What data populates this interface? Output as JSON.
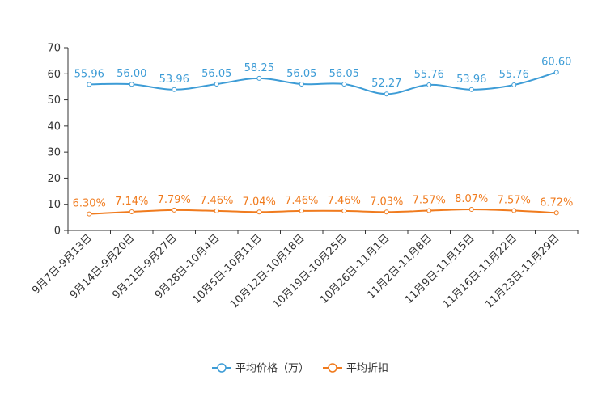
{
  "chart_data": {
    "type": "line",
    "categories": [
      "9月7日-9月13日",
      "9月14日-9月20日",
      "9月21日-9月27日",
      "9月28日-10月4日",
      "10月5日-10月11日",
      "10月12日-10月18日",
      "10月19日-10月25日",
      "10月26日-11月1日",
      "11月2日-11月8日",
      "11月9日-11月15日",
      "11月16日-11月22日",
      "11月23日-11月29日"
    ],
    "ylim": [
      0,
      70
    ],
    "yticks": [
      0,
      10,
      20,
      30,
      40,
      50,
      60,
      70
    ],
    "series": [
      {
        "name": "平均价格（万）",
        "color": "#3d9cd6",
        "values": [
          55.96,
          56.0,
          53.96,
          56.05,
          58.25,
          56.05,
          56.05,
          52.27,
          55.76,
          53.96,
          55.76,
          60.6
        ],
        "labels": [
          "55.96",
          "56.00",
          "53.96",
          "56.05",
          "58.25",
          "56.05",
          "56.05",
          "52.27",
          "55.76",
          "53.96",
          "55.76",
          "60.60"
        ]
      },
      {
        "name": "平均折扣",
        "color": "#f07b1e",
        "values": [
          6.3,
          7.14,
          7.79,
          7.46,
          7.04,
          7.46,
          7.46,
          7.03,
          7.57,
          8.07,
          7.57,
          6.72
        ],
        "labels": [
          "6.30%",
          "7.14%",
          "7.79%",
          "7.46%",
          "7.04%",
          "7.46%",
          "7.46%",
          "7.03%",
          "7.57%",
          "8.07%",
          "7.57%",
          "6.72%"
        ]
      }
    ],
    "legend_position": "bottom-center"
  }
}
